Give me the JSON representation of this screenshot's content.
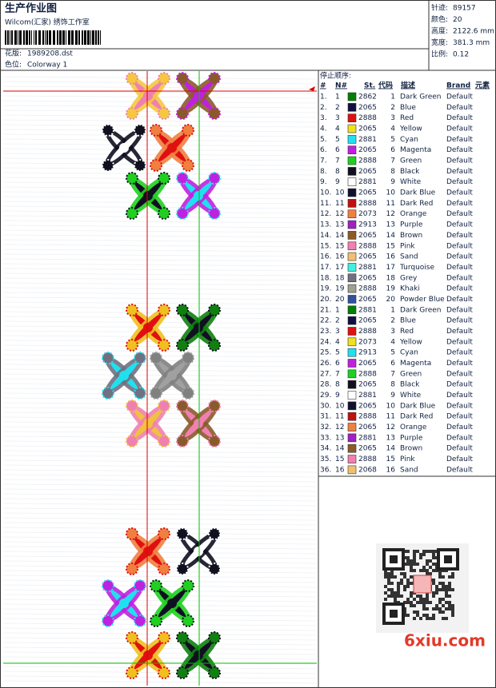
{
  "header": {
    "title": "生产作业图",
    "subtitle": "Wilcom(汇家) 绣饰工作室",
    "fields": [
      {
        "label": "花版:",
        "value": "1989208.dst"
      },
      {
        "label": "色位:",
        "value": "Colorway 1"
      }
    ]
  },
  "stats": [
    {
      "label": "针迹:",
      "value": "89157"
    },
    {
      "label": "颜色:",
      "value": "20"
    },
    {
      "label": "高度:",
      "value": "2122.6 mm"
    },
    {
      "label": "宽度:",
      "value": "381.3 mm"
    },
    {
      "label": "比例:",
      "value": "0.12"
    }
  ],
  "table": {
    "title": "停止顺序:",
    "columns": [
      "#",
      "N#",
      "St.",
      "代码",
      "描述",
      "Brand",
      "元素"
    ],
    "rows": [
      {
        "no": "1.",
        "n": "1",
        "color": "#008000",
        "st": "2862",
        "code": "1",
        "desc": "Dark Green",
        "brand": "Default"
      },
      {
        "no": "2.",
        "n": "2",
        "color": "#101040",
        "st": "2065",
        "code": "2",
        "desc": "Blue",
        "brand": "Default"
      },
      {
        "no": "3.",
        "n": "3",
        "color": "#e01010",
        "st": "2888",
        "code": "3",
        "desc": "Red",
        "brand": "Default"
      },
      {
        "no": "4.",
        "n": "4",
        "color": "#f0e020",
        "st": "2065",
        "code": "4",
        "desc": "Yellow",
        "brand": "Default"
      },
      {
        "no": "5.",
        "n": "5",
        "color": "#20e0f0",
        "st": "2881",
        "code": "5",
        "desc": "Cyan",
        "brand": "Default"
      },
      {
        "no": "6.",
        "n": "6",
        "color": "#c020e0",
        "st": "2065",
        "code": "6",
        "desc": "Magenta",
        "brand": "Default"
      },
      {
        "no": "7.",
        "n": "7",
        "color": "#20d020",
        "st": "2888",
        "code": "7",
        "desc": "Green",
        "brand": "Default"
      },
      {
        "no": "8.",
        "n": "8",
        "color": "#101020",
        "st": "2065",
        "code": "8",
        "desc": "Black",
        "brand": "Default"
      },
      {
        "no": "9.",
        "n": "9",
        "color": "#ffffff",
        "st": "2881",
        "code": "9",
        "desc": "White",
        "brand": "Default"
      },
      {
        "no": "10.",
        "n": "10",
        "color": "#101030",
        "st": "2065",
        "code": "10",
        "desc": "Dark Blue",
        "brand": "Default"
      },
      {
        "no": "11.",
        "n": "11",
        "color": "#c01010",
        "st": "2888",
        "code": "11",
        "desc": "Dark Red",
        "brand": "Default"
      },
      {
        "no": "12.",
        "n": "12",
        "color": "#f08040",
        "st": "2073",
        "code": "12",
        "desc": "Orange",
        "brand": "Default"
      },
      {
        "no": "13.",
        "n": "13",
        "color": "#a020c0",
        "st": "2913",
        "code": "13",
        "desc": "Purple",
        "brand": "Default"
      },
      {
        "no": "14.",
        "n": "14",
        "color": "#8b5a2b",
        "st": "2065",
        "code": "14",
        "desc": "Brown",
        "brand": "Default"
      },
      {
        "no": "15.",
        "n": "15",
        "color": "#f080b0",
        "st": "2888",
        "code": "15",
        "desc": "Pink",
        "brand": "Default"
      },
      {
        "no": "16.",
        "n": "16",
        "color": "#f0c070",
        "st": "2065",
        "code": "16",
        "desc": "Sand",
        "brand": "Default"
      },
      {
        "no": "17.",
        "n": "17",
        "color": "#40f0e0",
        "st": "2881",
        "code": "17",
        "desc": "Turquoise",
        "brand": "Default"
      },
      {
        "no": "18.",
        "n": "18",
        "color": "#707080",
        "st": "2065",
        "code": "18",
        "desc": "Grey",
        "brand": "Default"
      },
      {
        "no": "19.",
        "n": "19",
        "color": "#a0a090",
        "st": "2888",
        "code": "19",
        "desc": "Khaki",
        "brand": "Default"
      },
      {
        "no": "20.",
        "n": "20",
        "color": "#3050a0",
        "st": "2065",
        "code": "20",
        "desc": "Powder Blue",
        "brand": "Default"
      },
      {
        "no": "21.",
        "n": "1",
        "color": "#008000",
        "st": "2881",
        "code": "1",
        "desc": "Dark Green",
        "brand": "Default"
      },
      {
        "no": "22.",
        "n": "2",
        "color": "#101040",
        "st": "2065",
        "code": "2",
        "desc": "Blue",
        "brand": "Default"
      },
      {
        "no": "23.",
        "n": "3",
        "color": "#e01010",
        "st": "2888",
        "code": "3",
        "desc": "Red",
        "brand": "Default"
      },
      {
        "no": "24.",
        "n": "4",
        "color": "#f0e020",
        "st": "2073",
        "code": "4",
        "desc": "Yellow",
        "brand": "Default"
      },
      {
        "no": "25.",
        "n": "5",
        "color": "#20e0f0",
        "st": "2913",
        "code": "5",
        "desc": "Cyan",
        "brand": "Default"
      },
      {
        "no": "26.",
        "n": "6",
        "color": "#c020e0",
        "st": "2065",
        "code": "6",
        "desc": "Magenta",
        "brand": "Default"
      },
      {
        "no": "27.",
        "n": "7",
        "color": "#20d020",
        "st": "2888",
        "code": "7",
        "desc": "Green",
        "brand": "Default"
      },
      {
        "no": "28.",
        "n": "8",
        "color": "#101020",
        "st": "2065",
        "code": "8",
        "desc": "Black",
        "brand": "Default"
      },
      {
        "no": "29.",
        "n": "9",
        "color": "#ffffff",
        "st": "2881",
        "code": "9",
        "desc": "White",
        "brand": "Default"
      },
      {
        "no": "30.",
        "n": "10",
        "color": "#101030",
        "st": "2065",
        "code": "10",
        "desc": "Dark Blue",
        "brand": "Default"
      },
      {
        "no": "31.",
        "n": "11",
        "color": "#c01010",
        "st": "2888",
        "code": "11",
        "desc": "Dark Red",
        "brand": "Default"
      },
      {
        "no": "32.",
        "n": "12",
        "color": "#f08040",
        "st": "2065",
        "code": "12",
        "desc": "Orange",
        "brand": "Default"
      },
      {
        "no": "33.",
        "n": "13",
        "color": "#a020c0",
        "st": "2881",
        "code": "13",
        "desc": "Purple",
        "brand": "Default"
      },
      {
        "no": "34.",
        "n": "14",
        "color": "#8b5a2b",
        "st": "2065",
        "code": "14",
        "desc": "Brown",
        "brand": "Default"
      },
      {
        "no": "35.",
        "n": "15",
        "color": "#f080b0",
        "st": "2888",
        "code": "15",
        "desc": "Pink",
        "brand": "Default"
      },
      {
        "no": "36.",
        "n": "16",
        "color": "#f0c070",
        "st": "2068",
        "code": "16",
        "desc": "Sand",
        "brand": "Default"
      }
    ]
  },
  "watermark": "6xiu.com"
}
